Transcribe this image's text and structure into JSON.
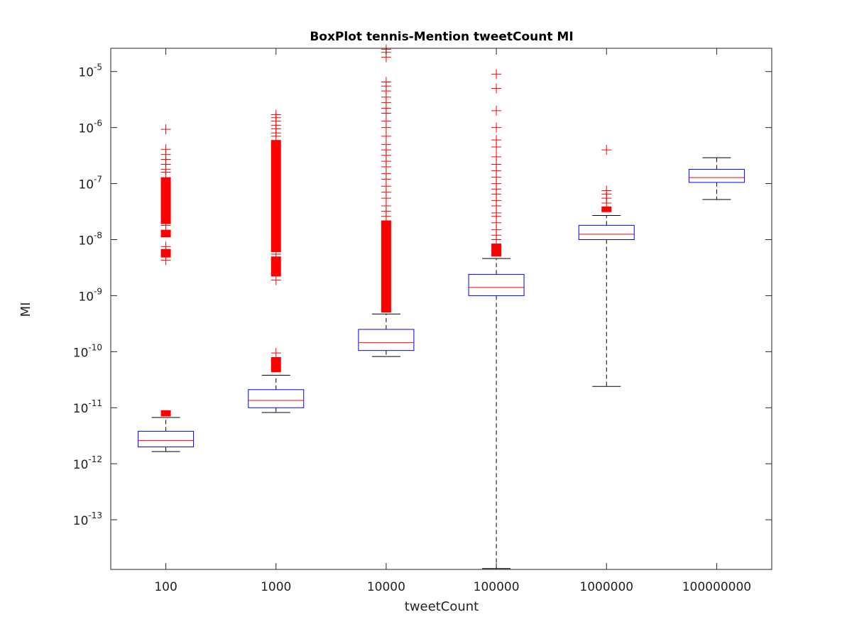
{
  "chart_data": {
    "type": "boxplot",
    "title": "BoxPlot tennis-Mention tweetCount MI",
    "xlabel": "tweetCount",
    "ylabel": "MI",
    "yscale": "log",
    "ylim": [
      1.3e-14,
      2.6e-05
    ],
    "grid": false,
    "yticks": [
      {
        "value": 1e-13,
        "base": "10",
        "exp": "-13"
      },
      {
        "value": 1e-12,
        "base": "10",
        "exp": "-12"
      },
      {
        "value": 1e-11,
        "base": "10",
        "exp": "-11"
      },
      {
        "value": 1e-10,
        "base": "10",
        "exp": "-10"
      },
      {
        "value": 1e-09,
        "base": "10",
        "exp": "-9"
      },
      {
        "value": 1e-08,
        "base": "10",
        "exp": "-8"
      },
      {
        "value": 1e-07,
        "base": "10",
        "exp": "-7"
      },
      {
        "value": 1e-06,
        "base": "10",
        "exp": "-6"
      },
      {
        "value": 1e-05,
        "base": "10",
        "exp": "-5"
      }
    ],
    "categories": [
      "100",
      "1000",
      "10000",
      "100000",
      "1000000",
      "100000000"
    ],
    "colors": {
      "box": "#0000ff",
      "median": "#ff0000",
      "whisker": "#000000",
      "outlier": "#ff0000"
    },
    "boxes": [
      {
        "category": "100",
        "q1": 2e-12,
        "median": 2.6e-12,
        "q3": 3.8e-12,
        "whisker_low": 1.65e-12,
        "whisker_high": 6.7e-12,
        "outlier_bands": [
          [
            7e-12,
            9e-12
          ],
          [
            4.8e-09,
            6.8e-09
          ],
          [
            1.1e-08,
            1.5e-08
          ],
          [
            1.9e-08,
            1.3e-07
          ]
        ],
        "outliers": [
          4.3e-09,
          7.5e-09,
          1.8e-08,
          1.6e-07,
          1.8e-07,
          2.2e-07,
          2.7e-07,
          3.3e-07,
          4.1e-07,
          9.3e-07
        ]
      },
      {
        "category": "1000",
        "q1": 1e-11,
        "median": 1.35e-11,
        "q3": 2.1e-11,
        "whisker_low": 8.2e-12,
        "whisker_high": 3.8e-11,
        "outlier_bands": [
          [
            4.3e-11,
            8e-11
          ],
          [
            2.2e-09,
            5e-09
          ],
          [
            6e-09,
            6e-07
          ]
        ],
        "outliers": [
          9.5e-11,
          1.9e-09,
          5.5e-09,
          7e-07,
          8e-07,
          9.5e-07,
          1.1e-06,
          1.3e-06,
          1.5e-06,
          1.7e-06
        ]
      },
      {
        "category": "10000",
        "q1": 1.05e-10,
        "median": 1.45e-10,
        "q3": 2.5e-10,
        "whisker_low": 8.2e-11,
        "whisker_high": 4.7e-10,
        "outlier_bands": [
          [
            5e-10,
            2.2e-08
          ]
        ],
        "outliers": [
          2.6e-08,
          3.2e-08,
          4e-08,
          5.5e-08,
          7e-08,
          9e-08,
          1.2e-07,
          1.5e-07,
          2e-07,
          2.5e-07,
          3.2e-07,
          4e-07,
          5e-07,
          7e-07,
          1e-06,
          1.3e-06,
          1.8e-06,
          2.2e-06,
          2.8e-06,
          3.5e-06,
          4.5e-06,
          5.5e-06,
          6.5e-06,
          1.8e-05,
          2.2e-05,
          2.5e-05
        ]
      },
      {
        "category": "100000",
        "q1": 1e-09,
        "median": 1.4e-09,
        "q3": 2.4e-09,
        "whisker_low": 1.35e-14,
        "whisker_high": 4.6e-09,
        "outlier_bands": [
          [
            5e-09,
            8.5e-09
          ]
        ],
        "outliers": [
          1e-08,
          1.2e-08,
          1.5e-08,
          2e-08,
          2.6e-08,
          3e-08,
          4e-08,
          5e-08,
          6.5e-08,
          8e-08,
          1e-07,
          1.3e-07,
          1.7e-07,
          2.2e-07,
          3e-07,
          4.5e-07,
          6e-07,
          1e-06,
          2e-06,
          5e-06,
          9e-06
        ]
      },
      {
        "category": "1000000",
        "q1": 1e-08,
        "median": 1.25e-08,
        "q3": 1.8e-08,
        "whisker_low": 2.4e-11,
        "whisker_high": 2.7e-08,
        "outlier_bands": [
          [
            3.1e-08,
            3.9e-08
          ]
        ],
        "outliers": [
          4.5e-08,
          5.5e-08,
          6.5e-08,
          7.5e-08,
          4e-07
        ]
      },
      {
        "category": "100000000",
        "q1": 1.05e-07,
        "median": 1.28e-07,
        "q3": 1.8e-07,
        "whisker_low": 5.2e-08,
        "whisker_high": 2.9e-07,
        "outlier_bands": [],
        "outliers": []
      }
    ]
  }
}
